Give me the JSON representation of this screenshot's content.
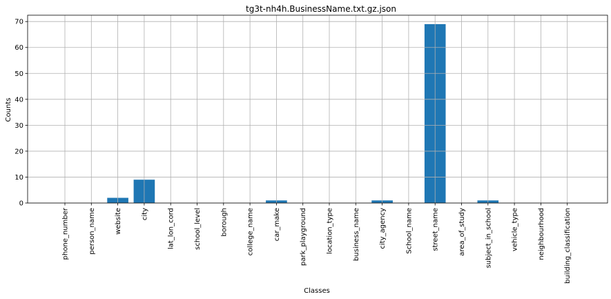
{
  "chart_data": {
    "type": "bar",
    "title": "tg3t-nh4h.BusinessName.txt.gz.json",
    "xlabel": "Classes",
    "ylabel": "Counts",
    "categories": [
      "phone_number",
      "person_name",
      "website",
      "city",
      "lat_lon_cord",
      "school_level",
      "borough",
      "college_name",
      "car_make",
      "park_playground",
      "location_type",
      "business_name",
      "city_agency",
      "School_name",
      "street_name",
      "area_of_study",
      "subject_in_school",
      "vehicle_type",
      "neighbourhood",
      "building_classification"
    ],
    "values": [
      0,
      0,
      2,
      9,
      0,
      0,
      0,
      0,
      1,
      0,
      0,
      0,
      1,
      0,
      69,
      0,
      1,
      0,
      0,
      0
    ],
    "ylim": [
      0,
      72.45
    ],
    "yticks": [
      0,
      10,
      20,
      30,
      40,
      50,
      60,
      70
    ],
    "grid": true,
    "bar_color": "#1f77b4"
  }
}
